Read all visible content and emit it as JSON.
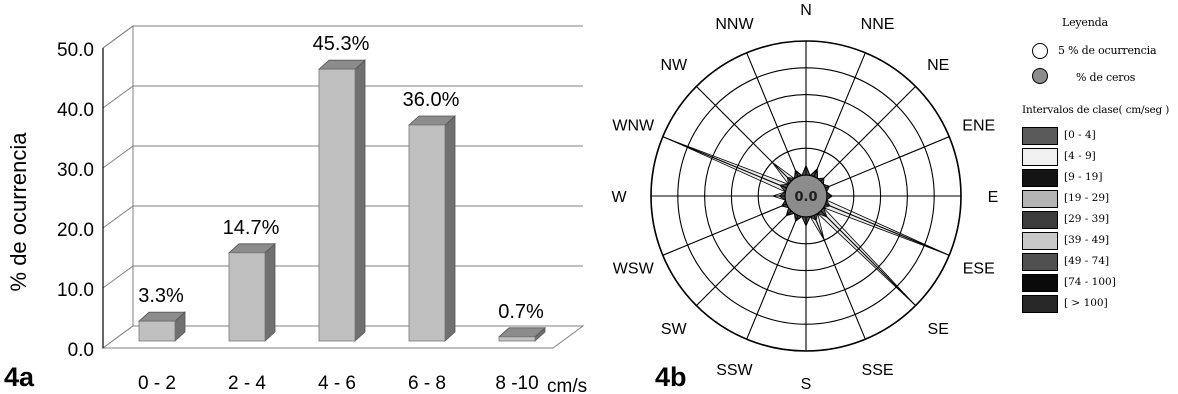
{
  "chart_data": [
    {
      "type": "bar",
      "panel_label": "4a",
      "ylabel": "% de ocurrencia",
      "xunit": "cm/s",
      "categories": [
        "0 - 2",
        "2 - 4",
        "4 - 6",
        "6 - 8",
        "8 -10"
      ],
      "values": [
        3.3,
        14.7,
        45.3,
        36.0,
        0.7
      ],
      "value_labels": [
        "3.3%",
        "14.7%",
        "45.3%",
        "36.0%",
        "0.7%"
      ],
      "ylim": [
        0,
        50
      ],
      "yticks": [
        "0.0",
        "10.0",
        "20.0",
        "30.0",
        "40.0",
        "50.0"
      ],
      "grid": true,
      "bar_color": "#c0c0c0",
      "bar_side_color": "#707070",
      "bar_top_color": "#8c8c8c"
    },
    {
      "type": "wind-rose",
      "panel_label": "4b",
      "center_label": "0.0",
      "directions": [
        "N",
        "NNE",
        "NE",
        "ENE",
        "E",
        "ESE",
        "SE",
        "SSE",
        "S",
        "SSW",
        "SW",
        "WSW",
        "W",
        "WNW",
        "NW",
        "NNW"
      ],
      "rings_percent": [
        5,
        10,
        15,
        20,
        25
      ],
      "dark_core_petals": [
        1.6,
        1.3,
        0.8,
        0.8,
        0.8,
        0.9,
        1.6,
        1.0,
        1.6,
        0.8,
        1.0,
        0.9,
        1.1,
        1.4,
        1.0,
        1.0
      ],
      "light_petals": [
        1.8,
        1.6,
        0.8,
        0.8,
        1.0,
        24.5,
        25.0,
        5.0,
        1.7,
        1.2,
        1.3,
        1.0,
        2.3,
        23.6,
        5.0,
        1.3
      ],
      "calm_fill": "#8c8c8c",
      "light_fill": "#ebebeb",
      "dark_fill": "#505050"
    }
  ],
  "legend": {
    "title": "Leyenda",
    "items": [
      {
        "symbol": "open-circle-icon",
        "label": "5 % de ocurrencia"
      },
      {
        "symbol": "filled-circle-icon",
        "label": "% de ceros",
        "color": "#8c8c8c"
      }
    ],
    "classes_title": "Intervalos de clase( cm/seg )",
    "classes": [
      {
        "label": "[0 - 4]",
        "color": "#5a5a5a"
      },
      {
        "label": "[4 - 9]",
        "color": "#f0f0f0"
      },
      {
        "label": "[9 - 19]",
        "color": "#141414"
      },
      {
        "label": "[19 - 29]",
        "color": "#b4b4b4"
      },
      {
        "label": "[29 - 39]",
        "color": "#3c3c3c"
      },
      {
        "label": "[39 - 49]",
        "color": "#c8c8c8"
      },
      {
        "label": "[49 - 74]",
        "color": "#505050"
      },
      {
        "label": "[74 - 100]",
        "color": "#0a0a0a"
      },
      {
        "label": "[ > 100]",
        "color": "#282828"
      }
    ]
  }
}
